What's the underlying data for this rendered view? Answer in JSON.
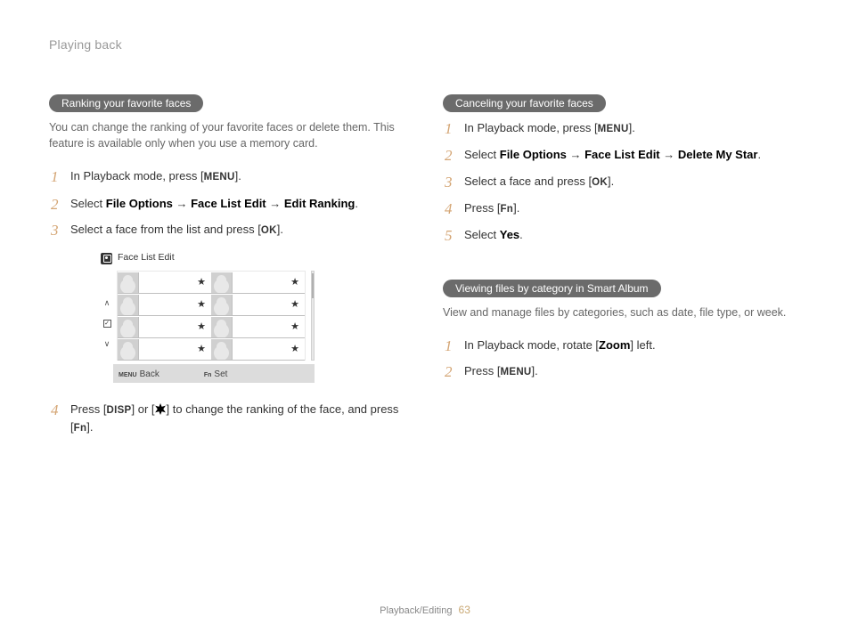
{
  "header": "Playing back",
  "footer": {
    "section": "Playback/Editing",
    "page": "63"
  },
  "buttons": {
    "menu": "MENU",
    "ok": "OK",
    "fn": "Fn",
    "disp": "DISP",
    "zoom": "Zoom"
  },
  "left": {
    "pill": "Ranking your favorite faces",
    "intro": "You can change the ranking of your favorite faces or delete them. This feature is available only when you use a memory card.",
    "step1_a": "In Playback mode, press [",
    "step1_b": "].",
    "step2_a": "Select ",
    "step2_b": "File Options",
    "step2_c": " → ",
    "step2_d": "Face List Edit",
    "step2_e": " → ",
    "step2_f": "Edit Ranking",
    "step2_g": ".",
    "step3_a": "Select a face from the list and press [",
    "step3_b": "].",
    "step4_a": "Press [",
    "step4_b": "] or [",
    "step4_c": "] to change the ranking of the face, and press [",
    "step4_d": "].",
    "mock": {
      "title": "Face List Edit",
      "back": "Back",
      "set": "Set",
      "back_tag": "MENU",
      "set_tag": "Fn",
      "star": "★"
    }
  },
  "right": {
    "pill1": "Canceling your favorite faces",
    "s1_a": "In Playback mode, press [",
    "s1_b": "].",
    "s2_a": "Select ",
    "s2_b": "File Options",
    "s2_c": " → ",
    "s2_d": "Face List Edit",
    "s2_e": " → ",
    "s2_f": "Delete My Star",
    "s2_g": ".",
    "s3_a": "Select a face and press [",
    "s3_b": "].",
    "s4_a": "Press [",
    "s4_b": "].",
    "s5_a": "Select ",
    "s5_b": "Yes",
    "s5_c": ".",
    "pill2": "Viewing files by category in Smart Album",
    "intro2": "View and manage files by categories, such as date, file type, or week.",
    "v1_a": "In Playback mode, rotate [",
    "v1_b": "] left.",
    "v2_a": "Press [",
    "v2_b": "]."
  }
}
